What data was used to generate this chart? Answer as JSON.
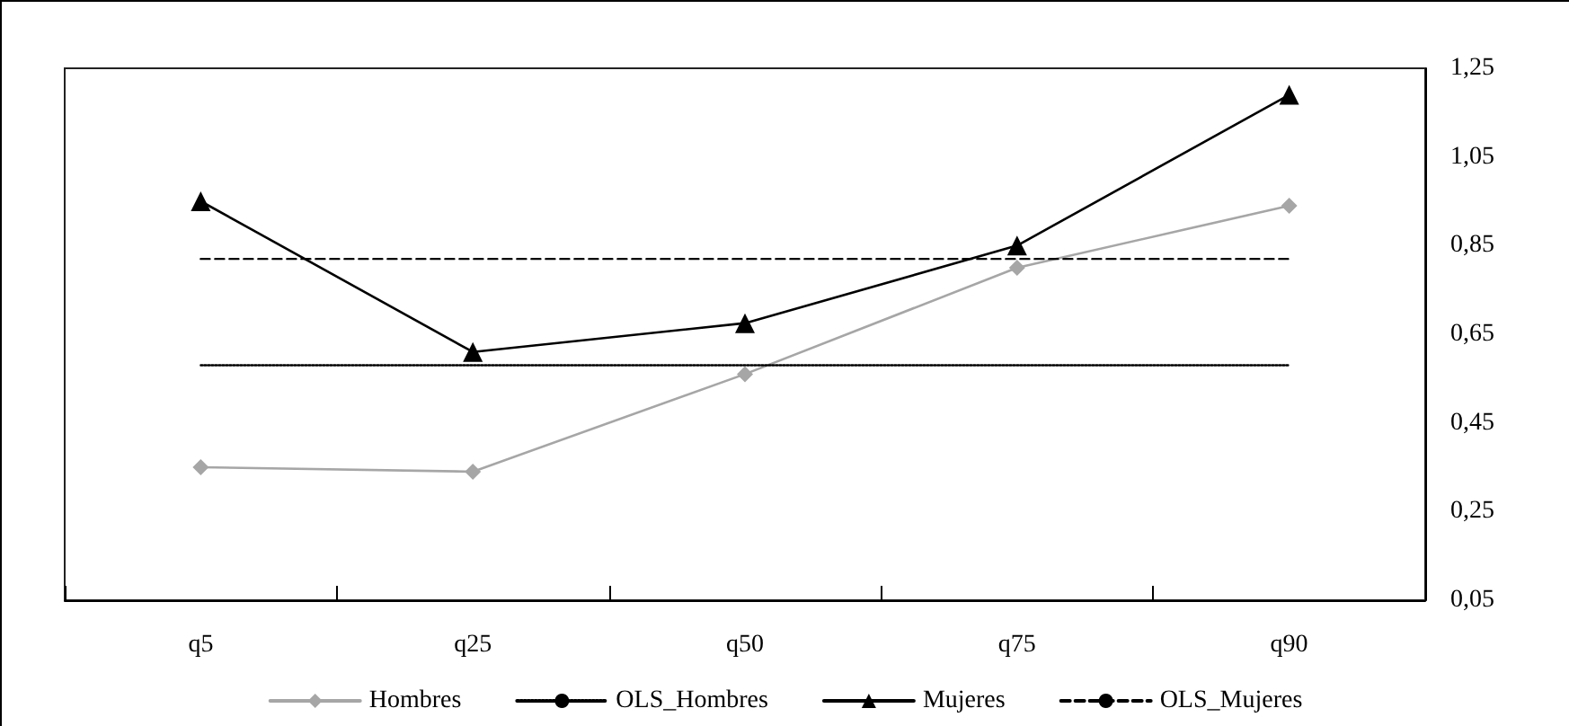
{
  "chart_data": {
    "type": "line",
    "categories": [
      "q5",
      "q25",
      "q50",
      "q75",
      "q90"
    ],
    "series": [
      {
        "name": "Hombres",
        "color": "#a6a6a6",
        "marker": "diamond",
        "line_style": "solid",
        "values": [
          0.35,
          0.34,
          0.56,
          0.8,
          0.94
        ]
      },
      {
        "name": "OLS_Hombres",
        "color": "#000000",
        "marker": "none",
        "line_style": "dotted",
        "values": [
          0.58,
          0.58,
          0.58,
          0.58,
          0.58
        ]
      },
      {
        "name": "Mujeres",
        "color": "#000000",
        "marker": "triangle",
        "line_style": "solid",
        "values": [
          0.95,
          0.61,
          0.675,
          0.85,
          1.19
        ]
      },
      {
        "name": "OLS_Mujeres",
        "color": "#000000",
        "marker": "none",
        "line_style": "dashed",
        "values": [
          0.82,
          0.82,
          0.82,
          0.82,
          0.82
        ]
      }
    ],
    "ylim": [
      0.05,
      1.25
    ],
    "yticks": [
      {
        "value": 0.05,
        "label": "0,05"
      },
      {
        "value": 0.25,
        "label": "0,25"
      },
      {
        "value": 0.45,
        "label": "0,45"
      },
      {
        "value": 0.65,
        "label": "0,65"
      },
      {
        "value": 0.85,
        "label": "0,85"
      },
      {
        "value": 1.05,
        "label": "1,05"
      },
      {
        "value": 1.25,
        "label": "1,25"
      }
    ],
    "grid": false,
    "legend": "bottom"
  }
}
